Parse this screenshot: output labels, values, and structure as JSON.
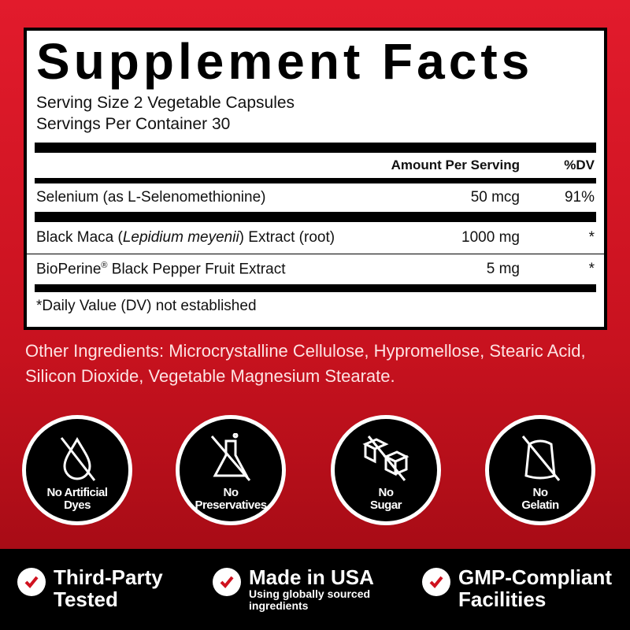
{
  "facts": {
    "title": "Supplement Facts",
    "serving_size": "Serving Size 2 Vegetable Capsules",
    "servings_per_container": "Servings Per Container 30",
    "header": {
      "amount": "Amount Per Serving",
      "dv": "%DV"
    },
    "rows": [
      {
        "name": "Selenium (as L-Selenomethionine)",
        "amount": "50 mcg",
        "dv": "91%"
      },
      {
        "name_pre": "Black Maca (",
        "name_italic": "Lepidium meyenii",
        "name_post": ") Extract (root)",
        "amount": "1000 mg",
        "dv": "*"
      },
      {
        "name_pre": "BioPerine",
        "reg": "®",
        "name_post": " Black Pepper Fruit Extract",
        "amount": "5 mg",
        "dv": "*"
      }
    ],
    "footnote": "*Daily Value (DV) not established"
  },
  "other_ingredients": "Other Ingredients: Microcrystalline Cellulose, Hypromellose, Stearic Acid, Silicon Dioxide, Vegetable Magnesium Stearate.",
  "badges": [
    {
      "icon": "no-drop-icon",
      "l1": "No Artificial",
      "l2": "Dyes"
    },
    {
      "icon": "no-flask-icon",
      "l1": "No",
      "l2": "Preservatives"
    },
    {
      "icon": "no-sugar-cube-icon",
      "l1": "No",
      "l2": "Sugar"
    },
    {
      "icon": "no-gelatin-icon",
      "l1": "No",
      "l2": "Gelatin"
    }
  ],
  "features": [
    {
      "l1": "Third-Party",
      "l2": "Tested"
    },
    {
      "l1": "Made in USA",
      "sub1": "Using globally sourced",
      "sub2": "ingredients"
    },
    {
      "l1": "GMP-Compliant",
      "l2": "Facilities"
    }
  ],
  "colors": {
    "background": "#c8121f",
    "check": "#d0121f"
  }
}
